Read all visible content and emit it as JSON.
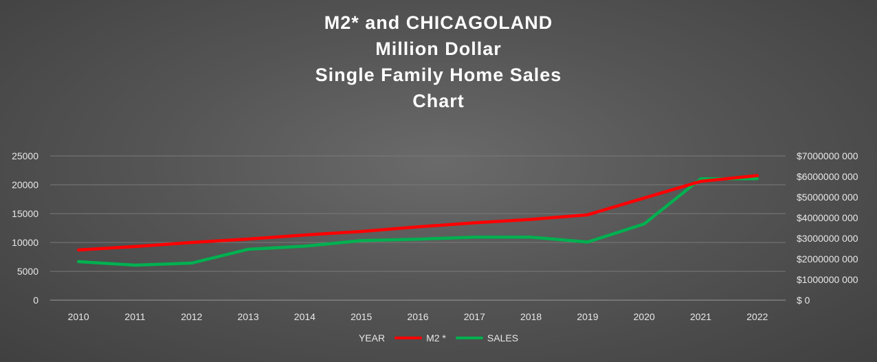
{
  "chart_data": {
    "type": "line",
    "title_lines": [
      "M2* and CHICAGOLAND",
      "Million Dollar",
      "Single Family Home Sales",
      "Chart"
    ],
    "categories": [
      "2010",
      "2011",
      "2012",
      "2013",
      "2014",
      "2015",
      "2016",
      "2017",
      "2018",
      "2019",
      "2020",
      "2021",
      "2022"
    ],
    "y_left": {
      "ticks": [
        "0",
        "5000",
        "10000",
        "15000",
        "20000",
        "25000"
      ],
      "ylim": [
        0,
        25000
      ]
    },
    "y_right": {
      "ticks": [
        "$ 0",
        "$1000000 000",
        "$2000000 000",
        "$3000000 000",
        "$4000000 000",
        "$5000000 000",
        "$6000000 000",
        "$7000000 000"
      ],
      "ylim": [
        0,
        7000000000
      ]
    },
    "grid": true,
    "legend_position": "bottom",
    "legend": [
      {
        "label": "YEAR",
        "color": null
      },
      {
        "label": "M2 *",
        "color": "#ff0000"
      },
      {
        "label": "SALES",
        "color": "#00b050"
      }
    ],
    "series": [
      {
        "name": "M2 *",
        "axis": "left",
        "color": "#ff0000",
        "values": [
          8700,
          9300,
          10000,
          10600,
          11300,
          11900,
          12700,
          13400,
          14000,
          14800,
          17700,
          20600,
          21600
        ]
      },
      {
        "name": "SALES",
        "axis": "right",
        "color": "#00b050",
        "values": [
          1870000000,
          1700000000,
          1800000000,
          2470000000,
          2620000000,
          2890000000,
          2960000000,
          3060000000,
          3060000000,
          2820000000,
          3700000000,
          5890000000,
          5890000000
        ]
      }
    ]
  }
}
